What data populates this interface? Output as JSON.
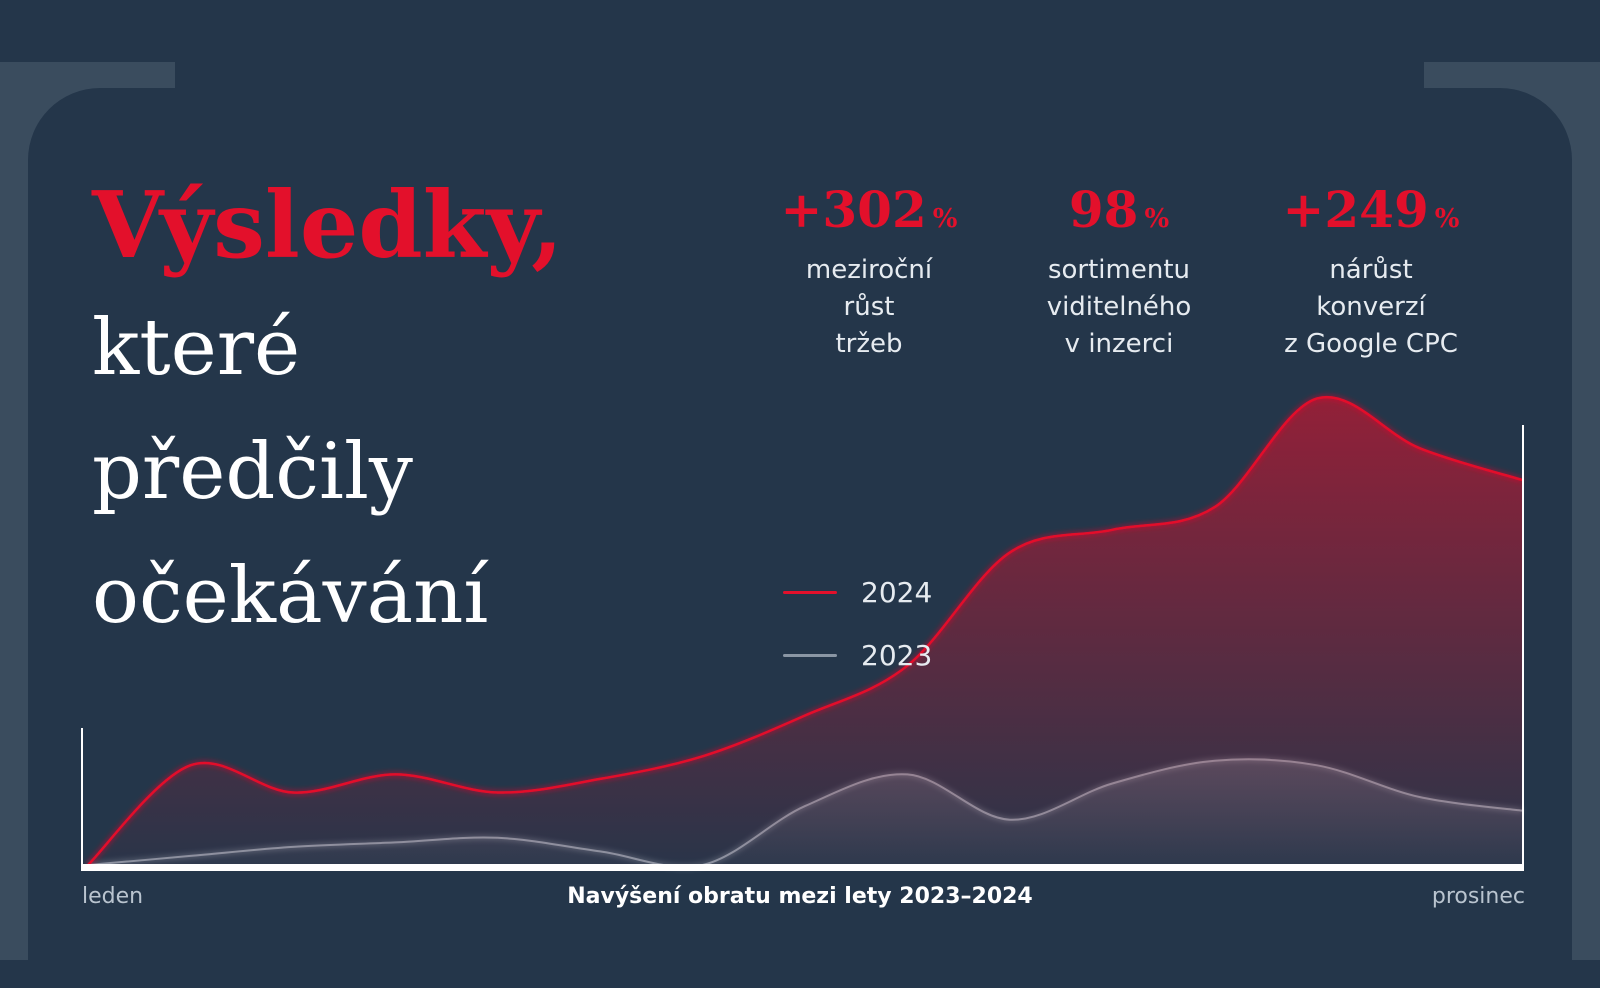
{
  "headline": {
    "accent": "Výsledky,",
    "lines": [
      "které",
      "předčily",
      "očekávání"
    ]
  },
  "stats": [
    {
      "value": "+302",
      "unit": "%",
      "desc": [
        "meziroční",
        "růst",
        "tržeb"
      ]
    },
    {
      "value": "98",
      "unit": "%",
      "desc": [
        "sortimentu",
        "viditelného",
        "v inzerci"
      ]
    },
    {
      "value": "+249",
      "unit": "%",
      "desc": [
        "nárůst",
        "konverzí",
        "z Google CPC"
      ]
    }
  ],
  "colors": {
    "background": "#24364a",
    "accent": "#e3102b",
    "series_2023": "#8a96a4",
    "axis": "#ffffff"
  },
  "chart_data": {
    "type": "area",
    "title": "Navýšení obratu mezi lety 2023–2024",
    "x_start_label": "leden",
    "x_end_label": "prosinec",
    "x": [
      0,
      1,
      2,
      3,
      4,
      5,
      6,
      7,
      8,
      9,
      10,
      11,
      12,
      13,
      14
    ],
    "ylim": [
      0,
      100
    ],
    "legend_position": "center",
    "series": [
      {
        "name": "2024",
        "color": "#e3102b",
        "values": [
          0,
          22,
          16,
          20,
          16,
          19,
          24,
          33,
          44,
          69,
          74,
          79,
          103,
          92,
          85
        ]
      },
      {
        "name": "2023",
        "color": "#8a96a4",
        "values": [
          0,
          2,
          4,
          5,
          6,
          3,
          0,
          13,
          20,
          10,
          18,
          23,
          22,
          15,
          12
        ]
      }
    ]
  }
}
